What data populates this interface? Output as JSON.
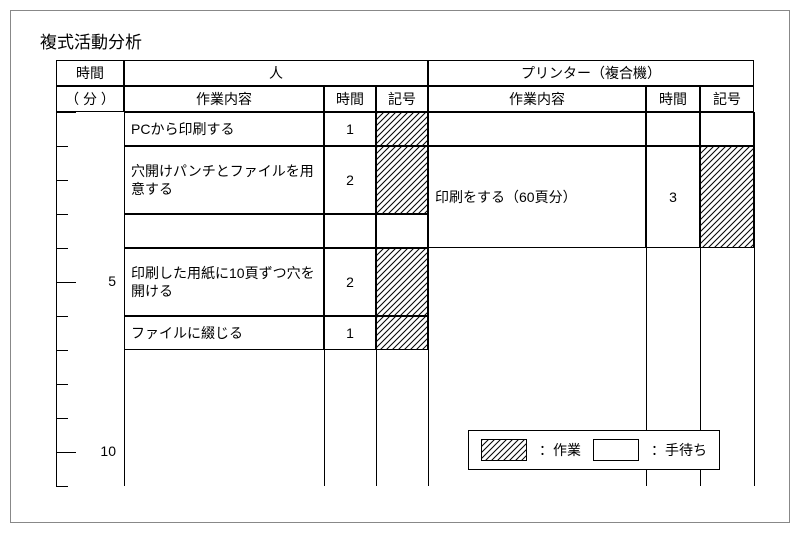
{
  "title": "複式活動分析",
  "header": {
    "time_top": "時間",
    "time_bottom": "（ 分 ）",
    "person": "人",
    "printer": "プリンター（複合機）",
    "task": "作業内容",
    "time": "時間",
    "mark": "記号"
  },
  "layout": {
    "cols": {
      "c0": 0,
      "c1": 68,
      "c2": 268,
      "c3": 320,
      "c4": 372,
      "c5": 590,
      "c6": 644,
      "c7": 698
    },
    "header_h1": 26,
    "header_h2": 26,
    "minute_h": 34,
    "body_minutes": 11
  },
  "ticks": {
    "major": [
      0,
      5,
      10
    ],
    "labels": {
      "5": "5",
      "10": "10"
    }
  },
  "person_rows": [
    {
      "start": 0,
      "span": 1,
      "task": "PCから印刷する",
      "time": "1",
      "mark": "hatched"
    },
    {
      "start": 1,
      "span": 2,
      "task": "穴開けパンチとファイルを用意する",
      "time": "2",
      "mark": "hatched"
    },
    {
      "start": 3,
      "span": 1,
      "task": "",
      "time": "",
      "mark": "blank"
    },
    {
      "start": 4,
      "span": 2,
      "task": "印刷した用紙に10頁ずつ穴を開ける",
      "time": "2",
      "mark": "hatched"
    },
    {
      "start": 6,
      "span": 1,
      "task": "ファイルに綴じる",
      "time": "1",
      "mark": "hatched"
    }
  ],
  "printer_rows": [
    {
      "start": 0,
      "span": 1,
      "task": "",
      "time": "",
      "mark": "blank"
    },
    {
      "start": 1,
      "span": 3,
      "task": "印刷をする（60頁分）",
      "time": "3",
      "mark": "hatched"
    }
  ],
  "legend": {
    "work": "：作業",
    "wait": "：手待ち"
  }
}
